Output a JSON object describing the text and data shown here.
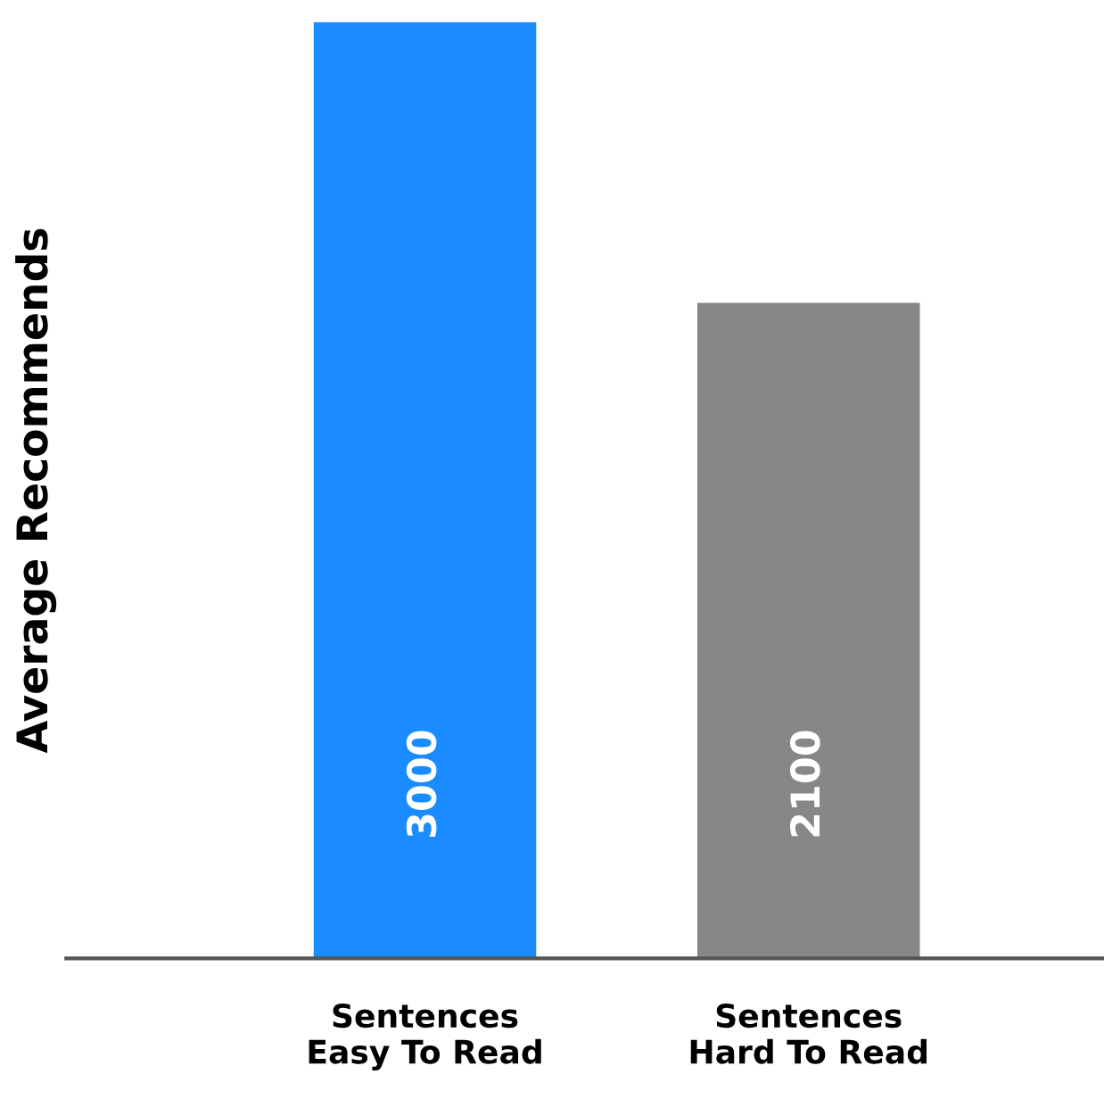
{
  "chart_data": {
    "type": "bar",
    "ylabel": "Average Recommends",
    "categories": [
      "Sentences\nEasy To Read",
      "Sentences\nHard To Read"
    ],
    "values": [
      3000,
      2100
    ],
    "colors": [
      "#1a8cff",
      "#878787"
    ],
    "ylim": [
      0,
      3000
    ],
    "data_labels": true,
    "grid": false,
    "tick_labels": "x"
  }
}
